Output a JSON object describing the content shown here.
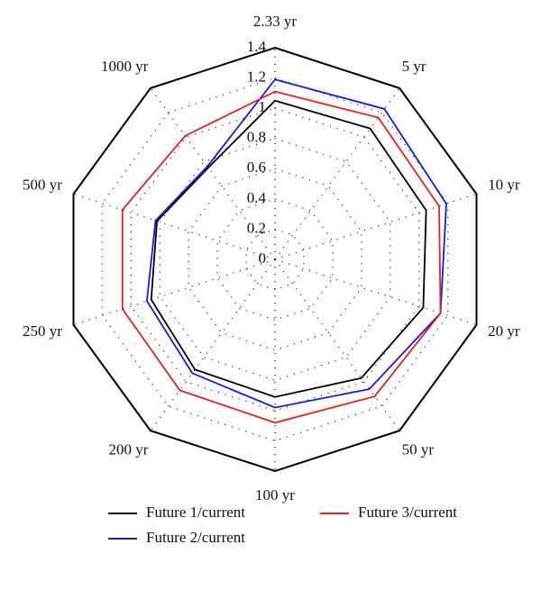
{
  "chart_data": {
    "type": "radar",
    "categories": [
      "2.33 yr",
      "5 yr",
      "10 yr",
      "20 yr",
      "50 yr",
      "100 yr",
      "200 yr",
      "250 yr",
      "500 yr",
      "1000 yr"
    ],
    "series": [
      {
        "name": "Future 1/current",
        "color": "#000000",
        "values": [
          1.05,
          1.07,
          1.05,
          1.03,
          0.97,
          0.91,
          0.9,
          0.86,
          0.82,
          0.75
        ]
      },
      {
        "name": "Future 2/current",
        "color": "#1a1ad6",
        "values": [
          1.19,
          1.23,
          1.19,
          1.15,
          1.06,
          0.98,
          0.93,
          0.89,
          0.83,
          0.76
        ]
      },
      {
        "name": "Future 3/current",
        "color": "#e02424",
        "values": [
          1.11,
          1.16,
          1.14,
          1.15,
          1.12,
          1.08,
          1.07,
          1.06,
          1.06,
          1.01
        ]
      }
    ],
    "ylim": [
      0,
      1.4
    ],
    "yticks": [
      0,
      0.2,
      0.4,
      0.6,
      0.8,
      1,
      1.2,
      1.4
    ],
    "grid": true
  }
}
